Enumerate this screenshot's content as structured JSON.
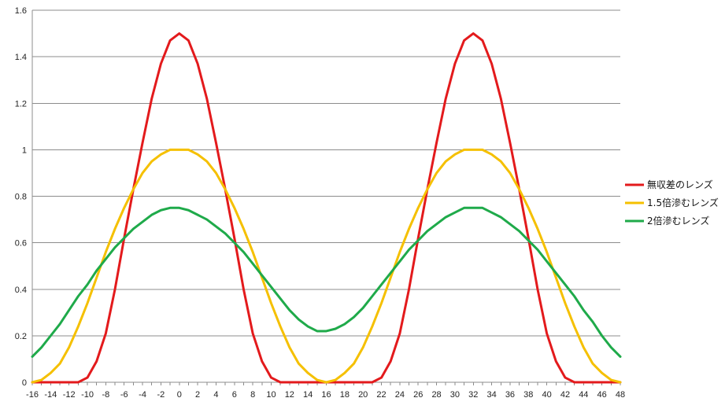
{
  "chart_data": {
    "type": "line",
    "title": "",
    "xlabel": "",
    "ylabel": "",
    "x_ticks": [
      "-16",
      "-14",
      "-12",
      "-10",
      "-8",
      "-6",
      "-4",
      "-2",
      "0",
      "2",
      "4",
      "6",
      "8",
      "10",
      "12",
      "14",
      "16",
      "18",
      "20",
      "22",
      "24",
      "26",
      "28",
      "30",
      "32",
      "34",
      "36",
      "38",
      "40",
      "42",
      "44",
      "46",
      "48"
    ],
    "y_ticks": [
      "0",
      "0.2",
      "0.4",
      "0.6",
      "0.8",
      "1",
      "1.2",
      "1.4",
      "1.6"
    ],
    "xlim": [
      -16,
      48
    ],
    "ylim": [
      0,
      1.6
    ],
    "grid": "horizontal",
    "legend": "right",
    "x": [
      -16,
      -15,
      -14,
      -13,
      -12,
      -11,
      -10,
      -9,
      -8,
      -7,
      -6,
      -5,
      -4,
      -3,
      -2,
      -1,
      0,
      1,
      2,
      3,
      4,
      5,
      6,
      7,
      8,
      9,
      10,
      11,
      12,
      13,
      14,
      15,
      16,
      17,
      18,
      19,
      20,
      21,
      22,
      23,
      24,
      25,
      26,
      27,
      28,
      29,
      30,
      31,
      32,
      33,
      34,
      35,
      36,
      37,
      38,
      39,
      40,
      41,
      42,
      43,
      44,
      45,
      46,
      47,
      48
    ],
    "series": [
      {
        "name": "無収差のレンズ",
        "color": "#e31a1c",
        "values": [
          0,
          0,
          0,
          0,
          0,
          0,
          0.02,
          0.09,
          0.21,
          0.4,
          0.62,
          0.83,
          1.03,
          1.22,
          1.37,
          1.47,
          1.5,
          1.47,
          1.37,
          1.22,
          1.03,
          0.83,
          0.62,
          0.4,
          0.21,
          0.09,
          0.02,
          0,
          0,
          0,
          0,
          0,
          0,
          0,
          0,
          0,
          0,
          0,
          0.02,
          0.09,
          0.21,
          0.4,
          0.62,
          0.83,
          1.03,
          1.22,
          1.37,
          1.47,
          1.5,
          1.47,
          1.37,
          1.22,
          1.03,
          0.83,
          0.62,
          0.4,
          0.21,
          0.09,
          0.02,
          0,
          0,
          0,
          0,
          0,
          0
        ]
      },
      {
        "name": "1.5倍滲むレンズ",
        "color": "#f5c000",
        "values": [
          0,
          0.01,
          0.04,
          0.08,
          0.15,
          0.24,
          0.34,
          0.45,
          0.56,
          0.66,
          0.75,
          0.83,
          0.9,
          0.95,
          0.98,
          1.0,
          1.0,
          1.0,
          0.98,
          0.95,
          0.9,
          0.83,
          0.75,
          0.66,
          0.56,
          0.45,
          0.34,
          0.24,
          0.15,
          0.08,
          0.04,
          0.01,
          0,
          0.01,
          0.04,
          0.08,
          0.15,
          0.24,
          0.34,
          0.45,
          0.56,
          0.66,
          0.75,
          0.83,
          0.9,
          0.95,
          0.98,
          1.0,
          1.0,
          1.0,
          0.98,
          0.95,
          0.9,
          0.83,
          0.75,
          0.66,
          0.56,
          0.45,
          0.34,
          0.24,
          0.15,
          0.08,
          0.04,
          0.01,
          0
        ]
      },
      {
        "name": "2倍滲むレンズ",
        "color": "#1faa4a",
        "values": [
          0.11,
          0.15,
          0.2,
          0.25,
          0.31,
          0.37,
          0.42,
          0.48,
          0.53,
          0.58,
          0.62,
          0.66,
          0.69,
          0.72,
          0.74,
          0.75,
          0.75,
          0.74,
          0.72,
          0.7,
          0.67,
          0.64,
          0.6,
          0.56,
          0.51,
          0.46,
          0.41,
          0.36,
          0.31,
          0.27,
          0.24,
          0.22,
          0.22,
          0.23,
          0.25,
          0.28,
          0.32,
          0.37,
          0.42,
          0.47,
          0.52,
          0.57,
          0.61,
          0.65,
          0.68,
          0.71,
          0.73,
          0.75,
          0.75,
          0.75,
          0.73,
          0.71,
          0.68,
          0.65,
          0.61,
          0.57,
          0.52,
          0.47,
          0.42,
          0.37,
          0.31,
          0.26,
          0.2,
          0.15,
          0.11
        ]
      }
    ]
  }
}
